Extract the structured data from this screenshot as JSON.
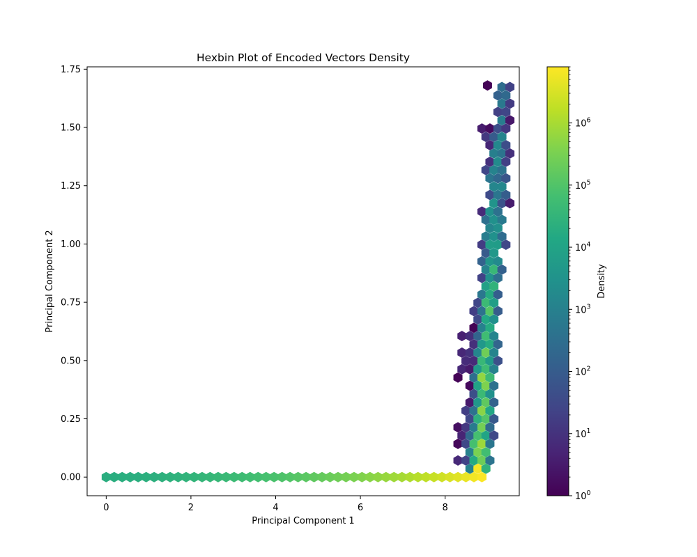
{
  "chart_data": {
    "type": "hexbin",
    "title": "Hexbin Plot of Encoded Vectors Density",
    "xlabel": "Principal Component 1",
    "ylabel": "Principal Component 2",
    "xlim": [
      -0.45,
      9.75
    ],
    "ylim": [
      -0.08,
      1.76
    ],
    "xticks": [
      "0",
      "2",
      "4",
      "6",
      "8"
    ],
    "yticks": [
      "0.00",
      "0.25",
      "0.50",
      "0.75",
      "1.00",
      "1.25",
      "1.50",
      "1.75"
    ],
    "xtick_values": [
      0,
      2,
      4,
      6,
      8
    ],
    "ytick_values": [
      0,
      0.25,
      0.5,
      0.75,
      1.0,
      1.25,
      1.5,
      1.75
    ],
    "colorscale": "viridis",
    "colorbar": {
      "label": "Density",
      "scale": "log",
      "range": [
        1,
        8000000
      ],
      "tick_base": "10",
      "tick_exponents": [
        "0",
        "1",
        "2",
        "3",
        "4",
        "5",
        "6"
      ]
    },
    "grid": false,
    "bottom_row": {
      "y": 0.0,
      "x_start": 0.0,
      "x_end": 8.9,
      "log10_density_start": 4.3,
      "log10_density_end": 6.9
    },
    "cluster": {
      "x_range": [
        8.2,
        9.4
      ],
      "y_range": [
        0.0,
        1.68
      ],
      "outlier": [
        9.0,
        1.68
      ]
    }
  }
}
